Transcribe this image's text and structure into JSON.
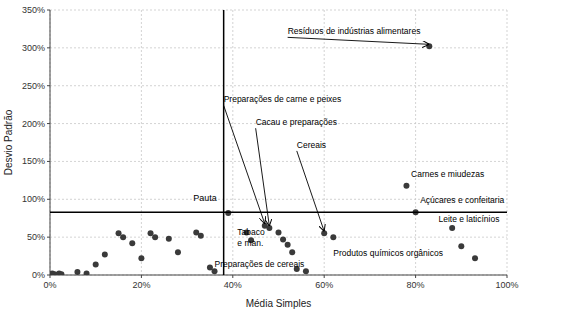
{
  "chart_data": {
    "type": "scatter",
    "xlabel": "Média Simples",
    "ylabel": "Desvio Padrão",
    "xlim": [
      0,
      1.0
    ],
    "ylim": [
      0,
      3.5
    ],
    "xticks": [
      {
        "value": 0,
        "label": "0%"
      },
      {
        "value": 0.2,
        "label": "20%"
      },
      {
        "value": 0.4,
        "label": "40%"
      },
      {
        "value": 0.6,
        "label": "60%"
      },
      {
        "value": 0.8,
        "label": "80%"
      },
      {
        "value": 1.0,
        "label": "100%"
      }
    ],
    "yticks": [
      {
        "value": 0,
        "label": "0%"
      },
      {
        "value": 0.5,
        "label": "50%"
      },
      {
        "value": 1.0,
        "label": "100%"
      },
      {
        "value": 1.5,
        "label": "150%"
      },
      {
        "value": 2.0,
        "label": "200%"
      },
      {
        "value": 2.5,
        "label": "250%"
      },
      {
        "value": 3.0,
        "label": "300%"
      },
      {
        "value": 3.5,
        "label": "350%"
      }
    ],
    "grid": true,
    "color": "#3a3a3a",
    "x": [
      0.005,
      0.01,
      0.015,
      0.02,
      0.025,
      0.06,
      0.08,
      0.1,
      0.12,
      0.15,
      0.16,
      0.18,
      0.2,
      0.22,
      0.23,
      0.26,
      0.28,
      0.32,
      0.33,
      0.35,
      0.36,
      0.39,
      0.43,
      0.44,
      0.47,
      0.48,
      0.5,
      0.51,
      0.52,
      0.53,
      0.54,
      0.56,
      0.6,
      0.62,
      0.78,
      0.8,
      0.83,
      0.88,
      0.9,
      0.93
    ],
    "y": [
      0.02,
      0.01,
      0.0,
      0.02,
      0.01,
      0.04,
      0.02,
      0.14,
      0.27,
      0.55,
      0.5,
      0.42,
      0.22,
      0.55,
      0.5,
      0.48,
      0.3,
      0.56,
      0.52,
      0.1,
      0.05,
      0.82,
      0.56,
      0.46,
      0.65,
      0.62,
      0.56,
      0.47,
      0.4,
      0.3,
      0.08,
      0.05,
      0.55,
      0.5,
      1.18,
      0.83,
      3.02,
      0.62,
      0.38,
      0.22
    ],
    "hline_y": 0.83,
    "vline_x": 0.38,
    "reference_label": {
      "text": "Pauta",
      "xytext": [
        0.365,
        0.95
      ]
    },
    "annotations": [
      {
        "text": "Resíduos de indústrias alimentares",
        "xy": [
          0.83,
          3.02
        ],
        "xytext": [
          0.52,
          3.22
        ]
      },
      {
        "text": "Preparações de carne e peixes",
        "xy": [
          0.47,
          0.65
        ],
        "xytext": [
          0.38,
          2.32
        ]
      },
      {
        "text": "Cacau e preparações",
        "xy": [
          0.48,
          0.62
        ],
        "xytext": [
          0.45,
          2.02
        ]
      },
      {
        "text": "Cereais",
        "xy": [
          0.6,
          0.55
        ],
        "xytext": [
          0.54,
          1.72
        ]
      },
      {
        "text": "Carnes e miudezas",
        "xytext": [
          0.79,
          1.27
        ]
      },
      {
        "text": "Açúcares e confeitaria",
        "xytext": [
          0.81,
          0.92
        ]
      },
      {
        "text": "Tabaco\ne man.",
        "xytext": [
          0.41,
          0.62
        ]
      },
      {
        "text": "Preparações de cereais",
        "xytext": [
          0.36,
          0.08
        ]
      },
      {
        "text": "Produtos químicos orgânicos",
        "xytext": [
          0.62,
          0.22
        ]
      },
      {
        "text": "Leite e laticínios",
        "xytext": [
          0.85,
          0.68
        ]
      }
    ]
  }
}
